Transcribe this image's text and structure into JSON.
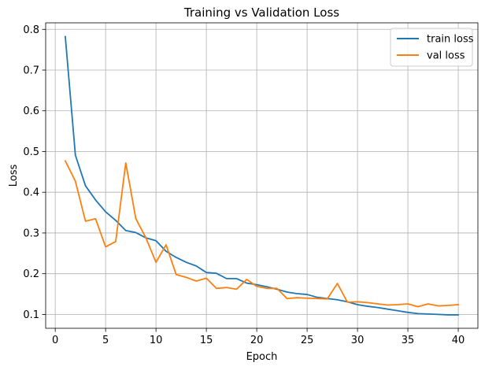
{
  "chart_data": {
    "type": "line",
    "title": "Training vs Validation Loss",
    "xlabel": "Epoch",
    "ylabel": "Loss",
    "xlim": [
      -0.95,
      41.95
    ],
    "ylim": [
      0.066,
      0.816
    ],
    "xticks": [
      0,
      5,
      10,
      15,
      20,
      25,
      30,
      35,
      40
    ],
    "yticks": [
      0.1,
      0.2,
      0.3,
      0.4,
      0.5,
      0.6,
      0.7,
      0.8
    ],
    "ytick_labels": [
      "0.1",
      "0.2",
      "0.3",
      "0.4",
      "0.5",
      "0.6",
      "0.7",
      "0.8"
    ],
    "grid": true,
    "legend_position": "top-right",
    "x": [
      1,
      2,
      3,
      4,
      5,
      6,
      7,
      8,
      9,
      10,
      11,
      12,
      13,
      14,
      15,
      16,
      17,
      18,
      19,
      20,
      21,
      22,
      23,
      24,
      25,
      26,
      27,
      28,
      29,
      30,
      31,
      32,
      33,
      34,
      35,
      36,
      37,
      38,
      39,
      40
    ],
    "series": [
      {
        "name": "train loss",
        "color": "#1f77b4",
        "values": [
          0.782,
          0.491,
          0.416,
          0.381,
          0.352,
          0.331,
          0.306,
          0.301,
          0.288,
          0.281,
          0.255,
          0.24,
          0.228,
          0.219,
          0.203,
          0.201,
          0.188,
          0.188,
          0.177,
          0.173,
          0.168,
          0.162,
          0.155,
          0.151,
          0.149,
          0.142,
          0.139,
          0.136,
          0.131,
          0.124,
          0.12,
          0.117,
          0.113,
          0.109,
          0.105,
          0.102,
          0.101,
          0.1,
          0.099,
          0.099
        ]
      },
      {
        "name": "val loss",
        "color": "#ff7f0e",
        "values": [
          0.477,
          0.427,
          0.329,
          0.335,
          0.266,
          0.279,
          0.472,
          0.335,
          0.288,
          0.228,
          0.271,
          0.198,
          0.191,
          0.182,
          0.189,
          0.164,
          0.166,
          0.162,
          0.186,
          0.169,
          0.164,
          0.164,
          0.139,
          0.141,
          0.14,
          0.139,
          0.138,
          0.176,
          0.13,
          0.131,
          0.129,
          0.126,
          0.123,
          0.124,
          0.126,
          0.119,
          0.126,
          0.121,
          0.122,
          0.124
        ]
      }
    ]
  }
}
